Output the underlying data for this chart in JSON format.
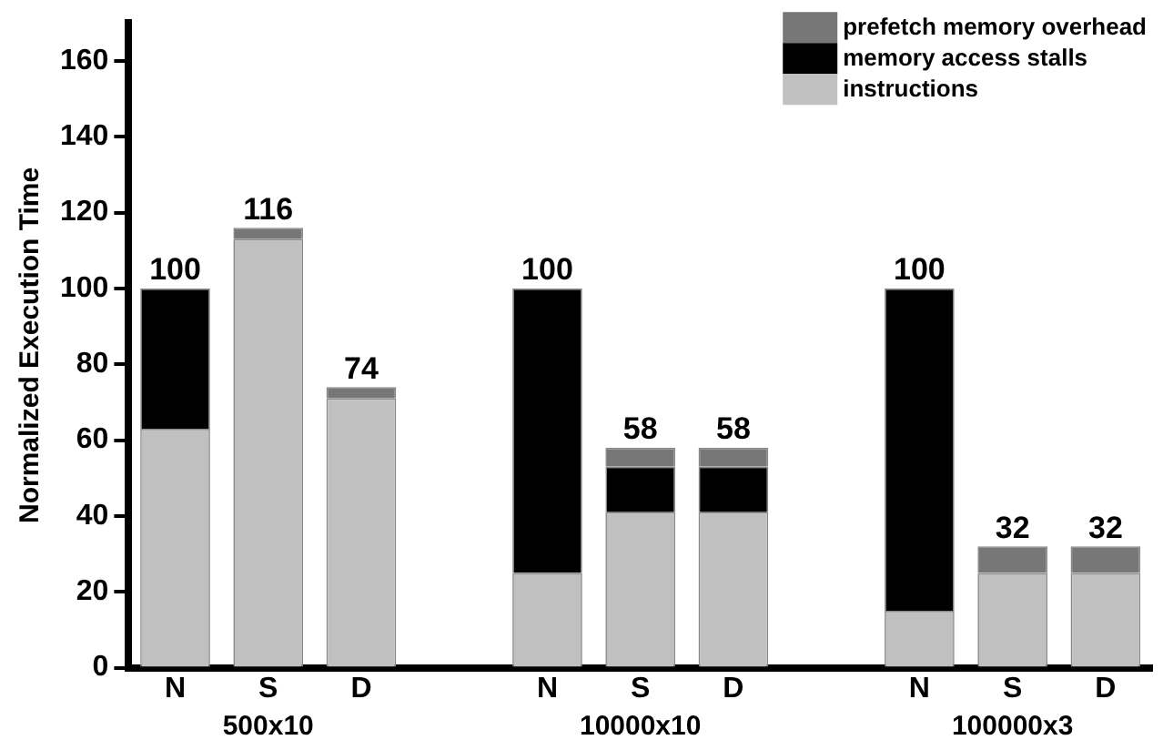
{
  "chart_data": {
    "type": "bar",
    "stacked": true,
    "ylabel": "Normalized Execution Time",
    "categories": [
      "N",
      "S",
      "D",
      null,
      "N",
      "S",
      "D",
      null,
      "N",
      "S",
      "D"
    ],
    "series": [
      {
        "name": "instructions",
        "color": "#c0c0c0",
        "values": [
          63,
          113,
          71,
          null,
          25,
          41,
          41,
          null,
          15,
          25,
          25
        ]
      },
      {
        "name": "memory access stalls",
        "color": "#000000",
        "values": [
          37,
          0,
          0,
          null,
          75,
          12,
          12,
          null,
          85,
          0,
          0
        ]
      },
      {
        "name": "prefetch memory overhead",
        "color": "#777777",
        "values": [
          0,
          3,
          3,
          null,
          0,
          5,
          5,
          null,
          0,
          7,
          7
        ]
      }
    ],
    "totals": [
      "100",
      "116",
      "74",
      null,
      "100",
      "58",
      "58",
      null,
      "100",
      "32",
      "32"
    ],
    "annotations": [
      "500x10",
      "10000x10",
      "100000x3"
    ],
    "ylim": [
      0,
      170
    ],
    "yticks": [
      0,
      20,
      40,
      60,
      80,
      100,
      120,
      140,
      160
    ],
    "grid": false,
    "legend": "top right"
  }
}
